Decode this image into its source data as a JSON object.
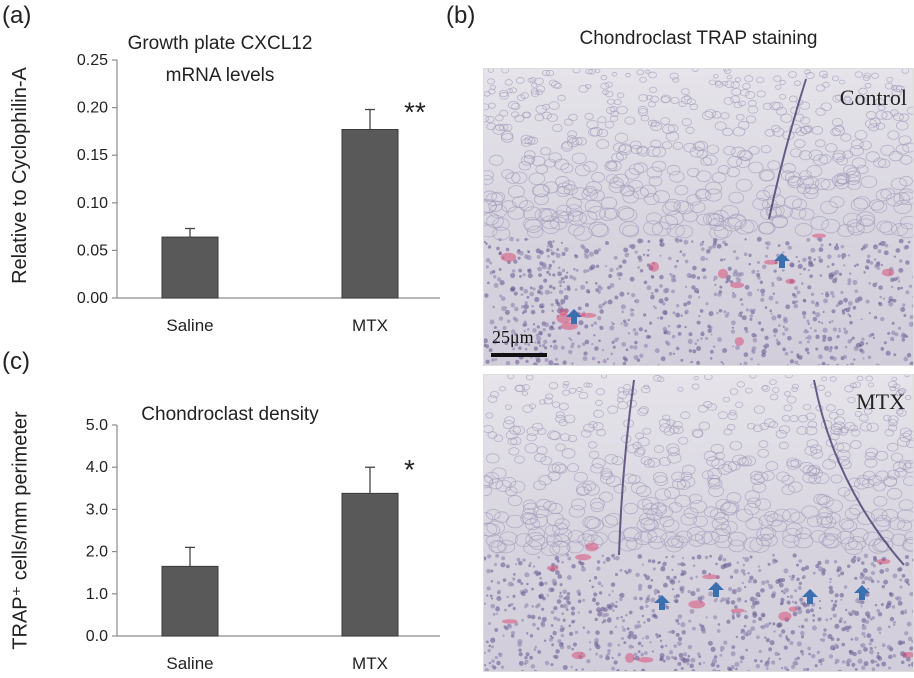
{
  "panels": {
    "a": "(a)",
    "b": "(b)",
    "c": "(c)"
  },
  "colors": {
    "bar": "#595959",
    "axis": "#8c8c8c",
    "text": "#222222",
    "arrow": "#3a6fb0",
    "stain": "#d9507a"
  },
  "chart_data": [
    {
      "type": "bar",
      "title": "Growth plate CXCL12 mRNA levels",
      "ylabel": "Relative to Cyclophilin-A",
      "categories": [
        "Saline",
        "MTX"
      ],
      "values": [
        0.064,
        0.177
      ],
      "errors": [
        0.009,
        0.021
      ],
      "significance": [
        "",
        "**"
      ],
      "ylim": [
        0,
        0.25
      ],
      "yticks": [
        "0.00",
        "0.05",
        "0.10",
        "0.15",
        "0.20",
        "0.25"
      ],
      "grid": false
    },
    {
      "type": "bar",
      "title": "Chondroclast density",
      "ylabel": "TRAP⁺ cells/mm perimeter",
      "categories": [
        "Saline",
        "MTX"
      ],
      "values": [
        1.65,
        3.38
      ],
      "errors": [
        0.45,
        0.62
      ],
      "significance": [
        "",
        "*"
      ],
      "ylim": [
        0,
        5
      ],
      "yticks": [
        "0.0",
        "1.0",
        "2.0",
        "3.0",
        "4.0",
        "5.0"
      ],
      "grid": false
    }
  ],
  "micrographs": {
    "title": "Chondroclast TRAP staining",
    "top_label": "Control",
    "bottom_label": "MTX",
    "scale_bar": "25μm"
  }
}
